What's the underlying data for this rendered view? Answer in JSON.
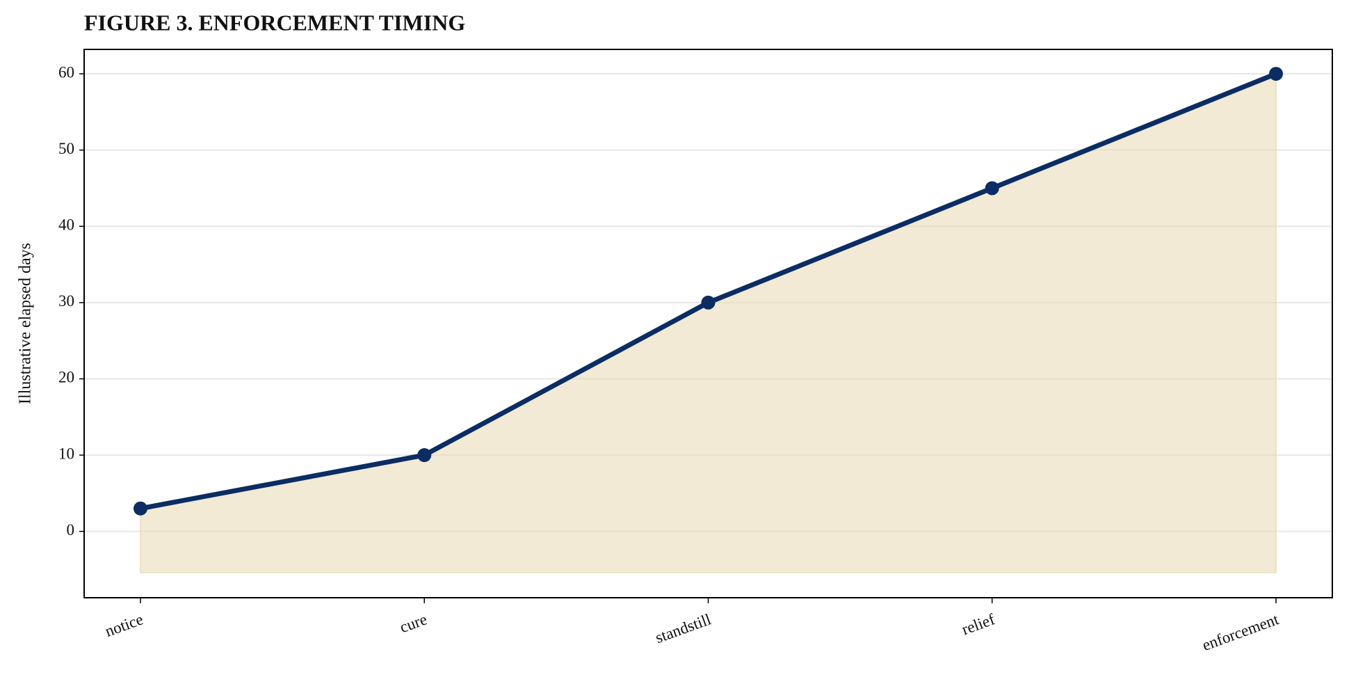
{
  "chart_data": {
    "type": "line",
    "title": "FIGURE 3. ENFORCEMENT TIMING",
    "y_label": "Illustrative elapsed days",
    "categories": [
      "notice",
      "cure",
      "standstill",
      "relief",
      "enforcement"
    ],
    "series": [
      {
        "name": "Illustrative elapsed days",
        "color": "#0b2d63",
        "values": [
          3,
          10,
          30,
          45,
          60
        ]
      }
    ],
    "area_color": "#e9dcb9",
    "fill_baseline": -5.4,
    "ylim": [
      -8.7,
      63.2
    ],
    "yticks": [
      0,
      10,
      20,
      30,
      40,
      50,
      60
    ],
    "grid": true
  }
}
